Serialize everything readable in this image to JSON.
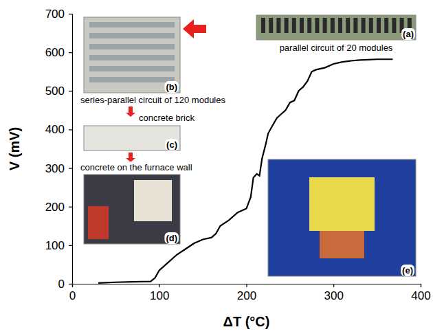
{
  "chart_data": {
    "type": "line",
    "x_label": "ΔT (°C)",
    "y_label": "V (mV)",
    "x": [
      30,
      50,
      70,
      90,
      95,
      100,
      110,
      120,
      130,
      140,
      150,
      160,
      165,
      170,
      180,
      190,
      200,
      205,
      208,
      212,
      215,
      218,
      222,
      225,
      230,
      235,
      240,
      245,
      250,
      255,
      260,
      265,
      270,
      275,
      280,
      290,
      300,
      310,
      320,
      330,
      340,
      350,
      360,
      368
    ],
    "values": [
      2,
      4,
      5,
      6,
      15,
      35,
      55,
      75,
      90,
      105,
      115,
      120,
      130,
      150,
      165,
      185,
      195,
      225,
      275,
      285,
      280,
      325,
      360,
      390,
      410,
      430,
      440,
      450,
      470,
      475,
      500,
      510,
      525,
      550,
      555,
      560,
      570,
      575,
      578,
      580,
      581,
      582,
      582,
      582
    ],
    "color": "#000000",
    "line_style": "solid",
    "xlim": [
      0,
      400
    ],
    "xticks": [
      0,
      100,
      200,
      300,
      400
    ],
    "ylim": [
      0,
      700
    ],
    "yticks": [
      0,
      100,
      200,
      300,
      400,
      500,
      600,
      700
    ],
    "grid": false,
    "annotations": [
      {
        "label": "(a)",
        "text": "parallel circuit of 20 modules"
      },
      {
        "label": "(b)",
        "text": "series-parallel circuit of 120 modules"
      },
      {
        "label": "(c)",
        "text": "concrete brick"
      },
      {
        "label": "(d)",
        "text": "concrete on the furnace wall"
      },
      {
        "label": "(e)"
      }
    ]
  }
}
